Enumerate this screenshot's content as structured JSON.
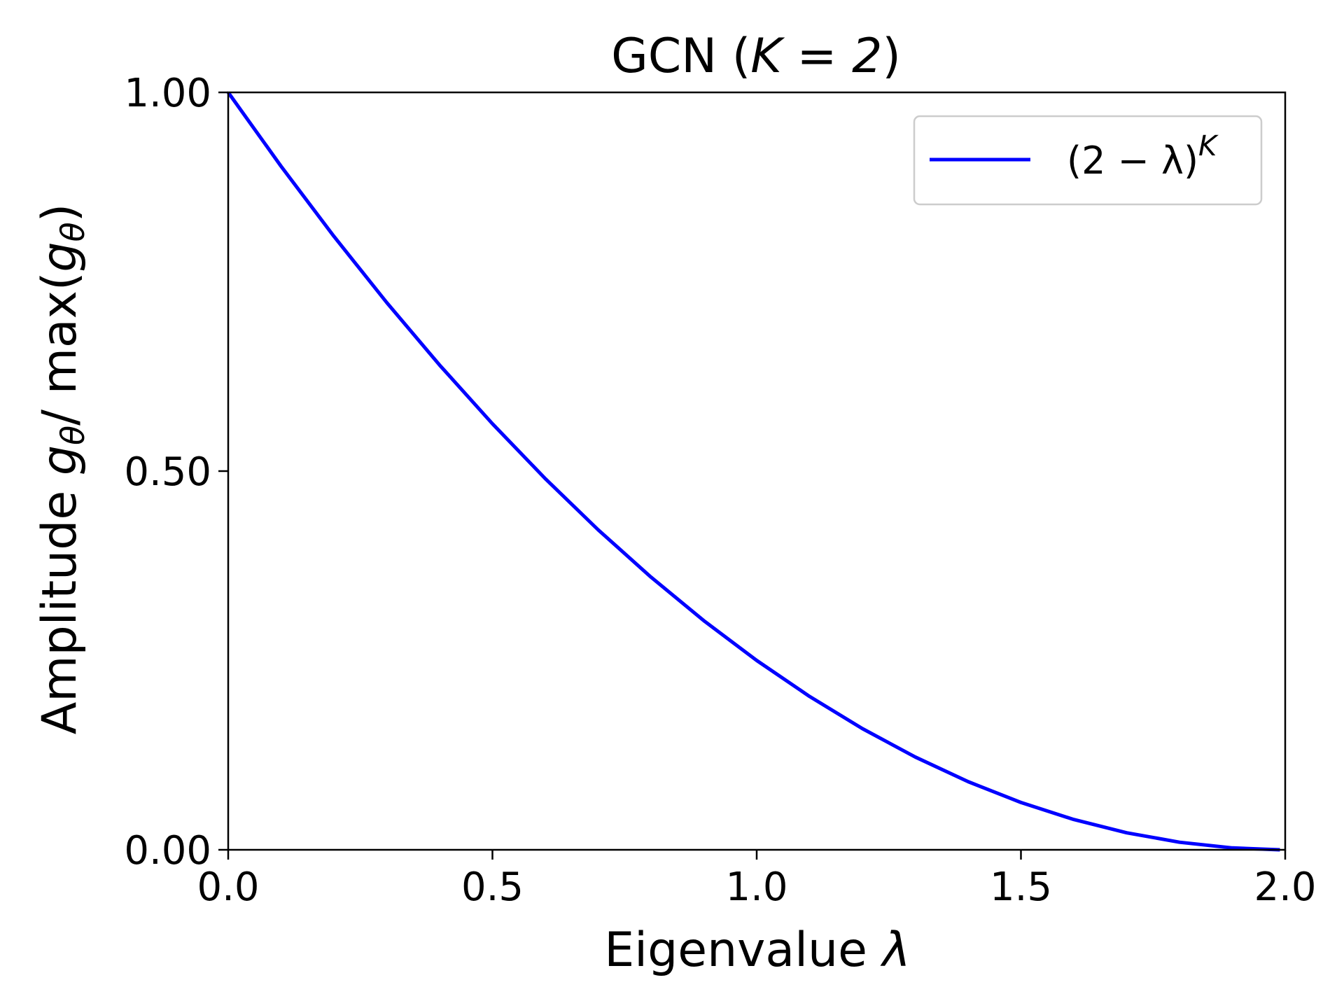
{
  "chart_data": {
    "type": "line",
    "title_prefix": "GCN (",
    "title_math": "K = 2",
    "title_suffix": ")",
    "xlabel_text": "Eigenvalue ",
    "xlabel_math": "λ",
    "ylabel_prefix": "Amplitude ",
    "ylabel_g1": "g",
    "ylabel_sub1": "θ",
    "ylabel_mid": "/ max(",
    "ylabel_g2": "g",
    "ylabel_sub2": "θ",
    "ylabel_suffix": ")",
    "xlim": [
      0.0,
      2.0
    ],
    "ylim": [
      0.0,
      1.0
    ],
    "x_ticks": [
      0.0,
      0.5,
      1.0,
      1.5,
      2.0
    ],
    "x_tick_labels": [
      "0.0",
      "0.5",
      "1.0",
      "1.5",
      "2.0"
    ],
    "y_ticks": [
      0.0,
      0.5,
      1.0
    ],
    "y_tick_labels": [
      "0.00",
      "0.50",
      "1.00"
    ],
    "grid": false,
    "legend_position": "top-right",
    "series": [
      {
        "name": "(2 − λ)^K",
        "legend_base": "(2 − λ)",
        "legend_sup": "K",
        "color": "#0000ff",
        "x": [
          0.0,
          0.1,
          0.2,
          0.3,
          0.4,
          0.5,
          0.6,
          0.7,
          0.8,
          0.9,
          1.0,
          1.1,
          1.2,
          1.3,
          1.4,
          1.5,
          1.6,
          1.7,
          1.8,
          1.9,
          1.99
        ],
        "y": [
          1.0,
          0.9025,
          0.81,
          0.7225,
          0.64,
          0.5625,
          0.49,
          0.4225,
          0.36,
          0.3025,
          0.25,
          0.2025,
          0.16,
          0.1225,
          0.09,
          0.0625,
          0.04,
          0.0225,
          0.01,
          0.0025,
          2.5e-05
        ]
      }
    ]
  }
}
